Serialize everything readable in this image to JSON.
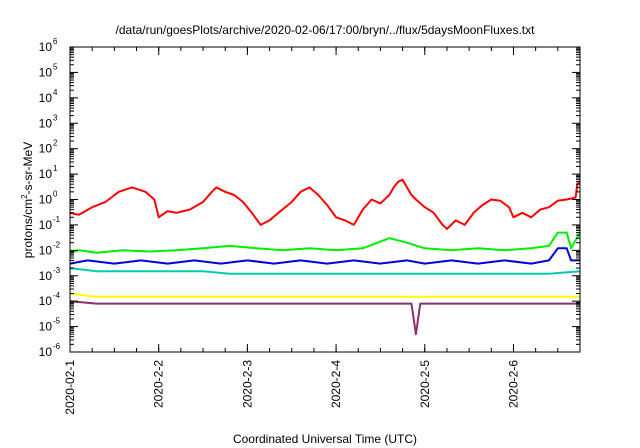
{
  "chart_data": {
    "type": "line",
    "title": "/data/run/goesPlots/archive/2020-02-06/17:00/bryn/../flux/5daysMoonFluxes.txt",
    "xlabel": "Coordinated Universal Time (UTC)",
    "ylabel": {
      "prefix": "protons/cm",
      "sup": "2",
      "suffix": "-s-sr-MeV"
    },
    "yscale": "log",
    "ylim": [
      1e-06,
      1000000.0
    ],
    "xlim": [
      0,
      5.75
    ],
    "y_ticks": [
      {
        "value": -6,
        "base": "10",
        "exp": "-6"
      },
      {
        "value": -5,
        "base": "10",
        "exp": "-5"
      },
      {
        "value": -4,
        "base": "10",
        "exp": "-4"
      },
      {
        "value": -3,
        "base": "10",
        "exp": "-3"
      },
      {
        "value": -2,
        "base": "10",
        "exp": "-2"
      },
      {
        "value": -1,
        "base": "10",
        "exp": "-1"
      },
      {
        "value": 0,
        "base": "10",
        "exp": "0"
      },
      {
        "value": 1,
        "base": "10",
        "exp": "1"
      },
      {
        "value": 2,
        "base": "10",
        "exp": "2"
      },
      {
        "value": 3,
        "base": "10",
        "exp": "3"
      },
      {
        "value": 4,
        "base": "10",
        "exp": "4"
      },
      {
        "value": 5,
        "base": "10",
        "exp": "5"
      },
      {
        "value": 6,
        "base": "10",
        "exp": "6"
      }
    ],
    "x_ticks": [
      {
        "value": 0,
        "label": "2020-02-1"
      },
      {
        "value": 1,
        "label": "2020-2-2"
      },
      {
        "value": 2,
        "label": "2020-2-3"
      },
      {
        "value": 3,
        "label": "2020-2-4"
      },
      {
        "value": 4,
        "label": "2020-2-5"
      },
      {
        "value": 5,
        "label": "2020-2-6"
      }
    ],
    "grid": false,
    "series": [
      {
        "color": "#ff0000",
        "points": [
          [
            0,
            0.3
          ],
          [
            0.1,
            0.25
          ],
          [
            0.25,
            0.5
          ],
          [
            0.4,
            0.8
          ],
          [
            0.55,
            2
          ],
          [
            0.7,
            3
          ],
          [
            0.85,
            2
          ],
          [
            0.95,
            1
          ],
          [
            1.0,
            0.2
          ],
          [
            1.1,
            0.35
          ],
          [
            1.2,
            0.3
          ],
          [
            1.35,
            0.4
          ],
          [
            1.5,
            0.8
          ],
          [
            1.6,
            2
          ],
          [
            1.65,
            3
          ],
          [
            1.75,
            2
          ],
          [
            1.85,
            1.5
          ],
          [
            1.95,
            0.8
          ],
          [
            2.05,
            0.3
          ],
          [
            2.15,
            0.1
          ],
          [
            2.25,
            0.15
          ],
          [
            2.35,
            0.3
          ],
          [
            2.5,
            0.8
          ],
          [
            2.6,
            2
          ],
          [
            2.7,
            3
          ],
          [
            2.8,
            1.5
          ],
          [
            2.9,
            0.6
          ],
          [
            3.0,
            0.2
          ],
          [
            3.1,
            0.15
          ],
          [
            3.2,
            0.1
          ],
          [
            3.3,
            0.4
          ],
          [
            3.4,
            1
          ],
          [
            3.5,
            0.7
          ],
          [
            3.6,
            1.5
          ],
          [
            3.65,
            3
          ],
          [
            3.7,
            5
          ],
          [
            3.75,
            6
          ],
          [
            3.8,
            3
          ],
          [
            3.85,
            1.5
          ],
          [
            3.9,
            1
          ],
          [
            4.0,
            0.5
          ],
          [
            4.1,
            0.3
          ],
          [
            4.2,
            0.1
          ],
          [
            4.25,
            0.07
          ],
          [
            4.35,
            0.15
          ],
          [
            4.45,
            0.1
          ],
          [
            4.55,
            0.3
          ],
          [
            4.65,
            0.6
          ],
          [
            4.75,
            1
          ],
          [
            4.85,
            0.9
          ],
          [
            4.95,
            0.5
          ],
          [
            5.0,
            0.2
          ],
          [
            5.1,
            0.3
          ],
          [
            5.2,
            0.2
          ],
          [
            5.3,
            0.4
          ],
          [
            5.4,
            0.5
          ],
          [
            5.5,
            0.9
          ],
          [
            5.6,
            1
          ],
          [
            5.7,
            1.2
          ],
          [
            5.72,
            4
          ],
          [
            5.75,
            5
          ]
        ]
      },
      {
        "color": "#00ee00",
        "points": [
          [
            0,
            0.008
          ],
          [
            0.1,
            0.01
          ],
          [
            0.3,
            0.008
          ],
          [
            0.6,
            0.01
          ],
          [
            0.9,
            0.009
          ],
          [
            1.2,
            0.01
          ],
          [
            1.5,
            0.012
          ],
          [
            1.8,
            0.015
          ],
          [
            2.1,
            0.012
          ],
          [
            2.4,
            0.01
          ],
          [
            2.7,
            0.012
          ],
          [
            3.0,
            0.01
          ],
          [
            3.3,
            0.012
          ],
          [
            3.6,
            0.03
          ],
          [
            3.8,
            0.02
          ],
          [
            4.0,
            0.012
          ],
          [
            4.3,
            0.01
          ],
          [
            4.6,
            0.012
          ],
          [
            4.9,
            0.01
          ],
          [
            5.2,
            0.012
          ],
          [
            5.4,
            0.015
          ],
          [
            5.5,
            0.05
          ],
          [
            5.6,
            0.05
          ],
          [
            5.65,
            0.012
          ],
          [
            5.75,
            0.05
          ]
        ]
      },
      {
        "color": "#0000dd",
        "points": [
          [
            0,
            0.003
          ],
          [
            0.2,
            0.004
          ],
          [
            0.5,
            0.003
          ],
          [
            0.8,
            0.004
          ],
          [
            1.1,
            0.003
          ],
          [
            1.4,
            0.004
          ],
          [
            1.7,
            0.003
          ],
          [
            2.0,
            0.004
          ],
          [
            2.3,
            0.003
          ],
          [
            2.6,
            0.004
          ],
          [
            2.9,
            0.003
          ],
          [
            3.2,
            0.004
          ],
          [
            3.5,
            0.003
          ],
          [
            3.8,
            0.004
          ],
          [
            4.0,
            0.003
          ],
          [
            4.3,
            0.004
          ],
          [
            4.6,
            0.003
          ],
          [
            4.9,
            0.004
          ],
          [
            5.2,
            0.003
          ],
          [
            5.4,
            0.004
          ],
          [
            5.5,
            0.012
          ],
          [
            5.6,
            0.012
          ],
          [
            5.65,
            0.004
          ],
          [
            5.75,
            0.004
          ]
        ]
      },
      {
        "color": "#00ccaa",
        "points": [
          [
            0,
            0.002
          ],
          [
            0.3,
            0.0015
          ],
          [
            0.6,
            0.0015
          ],
          [
            0.9,
            0.0015
          ],
          [
            1.2,
            0.0015
          ],
          [
            1.5,
            0.0015
          ],
          [
            1.8,
            0.0012
          ],
          [
            2.1,
            0.0012
          ],
          [
            2.4,
            0.0012
          ],
          [
            2.7,
            0.0012
          ],
          [
            3.0,
            0.0012
          ],
          [
            3.3,
            0.0012
          ],
          [
            3.6,
            0.0012
          ],
          [
            3.9,
            0.0012
          ],
          [
            4.2,
            0.0012
          ],
          [
            4.5,
            0.0012
          ],
          [
            4.8,
            0.0012
          ],
          [
            5.1,
            0.0012
          ],
          [
            5.4,
            0.0012
          ],
          [
            5.75,
            0.0015
          ]
        ]
      },
      {
        "color": "#ffff00",
        "points": [
          [
            0,
            0.0002
          ],
          [
            0.3,
            0.00015
          ],
          [
            0.6,
            0.00015
          ],
          [
            0.9,
            0.00015
          ],
          [
            1.2,
            0.00015
          ],
          [
            1.5,
            0.00015
          ],
          [
            1.8,
            0.00015
          ],
          [
            2.1,
            0.00015
          ],
          [
            2.4,
            0.00015
          ],
          [
            2.7,
            0.00015
          ],
          [
            3.0,
            0.00015
          ],
          [
            3.3,
            0.00015
          ],
          [
            3.6,
            0.00015
          ],
          [
            3.9,
            0.00015
          ],
          [
            4.2,
            0.00015
          ],
          [
            4.5,
            0.00015
          ],
          [
            4.8,
            0.00015
          ],
          [
            5.1,
            0.00015
          ],
          [
            5.4,
            0.00015
          ],
          [
            5.75,
            0.00015
          ]
        ]
      },
      {
        "color": "#883366",
        "points": [
          [
            0,
            0.0001
          ],
          [
            0.3,
            8e-05
          ],
          [
            0.6,
            8e-05
          ],
          [
            0.9,
            8e-05
          ],
          [
            1.2,
            8e-05
          ],
          [
            1.5,
            8e-05
          ],
          [
            1.8,
            8e-05
          ],
          [
            2.1,
            8e-05
          ],
          [
            2.4,
            8e-05
          ],
          [
            2.7,
            8e-05
          ],
          [
            3.0,
            8e-05
          ],
          [
            3.3,
            8e-05
          ],
          [
            3.6,
            8e-05
          ],
          [
            3.85,
            8e-05
          ],
          [
            3.9,
            5e-06
          ],
          [
            3.95,
            8e-05
          ],
          [
            4.2,
            8e-05
          ],
          [
            4.5,
            8e-05
          ],
          [
            4.8,
            8e-05
          ],
          [
            5.1,
            8e-05
          ],
          [
            5.4,
            8e-05
          ],
          [
            5.75,
            8e-05
          ]
        ]
      }
    ]
  }
}
